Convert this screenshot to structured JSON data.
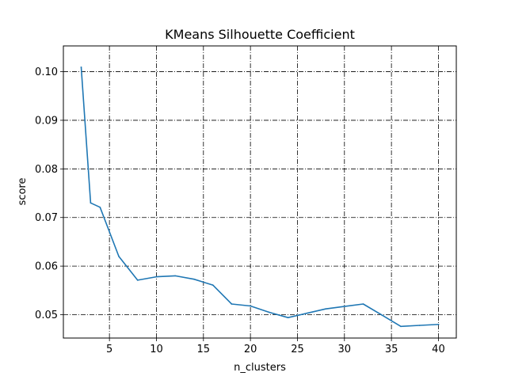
{
  "chart_data": {
    "type": "line",
    "title": "KMeans Silhouette Coefficient",
    "xlabel": "n_clusters",
    "ylabel": "score",
    "xlim": [
      0.1,
      41.9
    ],
    "ylim": [
      0.0452,
      0.1053
    ],
    "xticks": [
      5,
      10,
      15,
      20,
      25,
      30,
      35,
      40
    ],
    "yticks": [
      0.05,
      0.06,
      0.07,
      0.08,
      0.09,
      0.1
    ],
    "ytick_labels": [
      "0.05",
      "0.06",
      "0.07",
      "0.08",
      "0.09",
      "0.10"
    ],
    "grid": true,
    "series": [
      {
        "color": "#1f77b4",
        "x": [
          2,
          3,
          4,
          6,
          8,
          10,
          12,
          14,
          16,
          18,
          20,
          22,
          24,
          26,
          28,
          30,
          32,
          34,
          36,
          38,
          40
        ],
        "y": [
          0.1009,
          0.073,
          0.0721,
          0.062,
          0.0571,
          0.0578,
          0.058,
          0.0573,
          0.0561,
          0.0522,
          0.0518,
          0.0505,
          0.0494,
          0.0503,
          0.0512,
          0.0517,
          0.0522,
          0.0499,
          0.0476,
          0.0478,
          0.048
        ]
      }
    ]
  }
}
